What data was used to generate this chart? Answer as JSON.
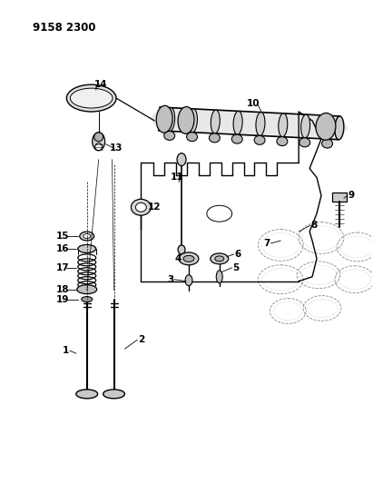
{
  "title": "9158 2300",
  "bg": "#ffffff",
  "lc": "#000000",
  "gray1": "#aaaaaa",
  "gray2": "#cccccc",
  "gray3": "#888888",
  "fig_w": 4.11,
  "fig_h": 5.33,
  "dpi": 100
}
